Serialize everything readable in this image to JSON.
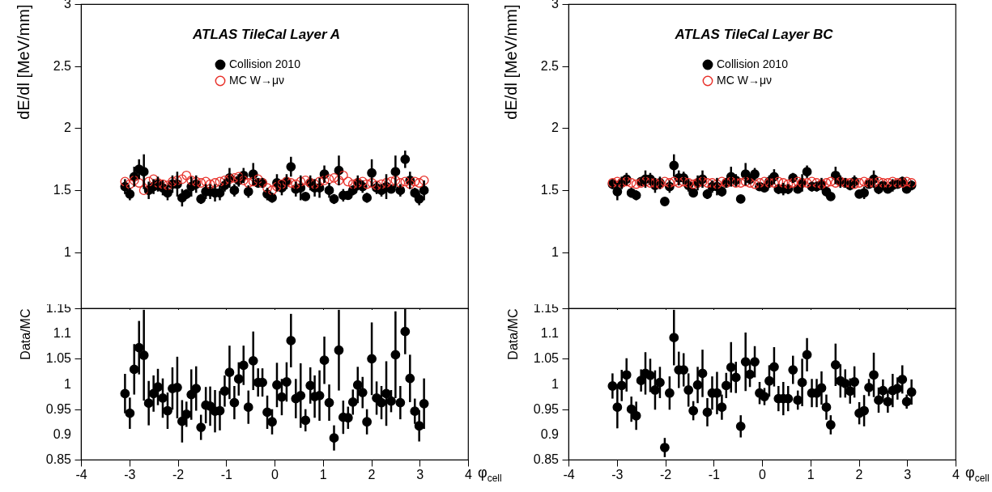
{
  "chart_data": [
    {
      "type": "scatter",
      "title": "ATLAS TileCal Layer A",
      "ylabel": "dE/dl [MeV/mm]",
      "xlim": [
        -4,
        4
      ],
      "xticks": [
        -4,
        -3,
        -2,
        -1,
        0,
        1,
        2,
        3,
        4
      ],
      "ylim": [
        0.55,
        3
      ],
      "yticks": [
        1,
        1.5,
        2,
        2.5,
        3
      ],
      "tick_labels": "y",
      "legend": "top",
      "marker": "circle",
      "x": [
        -3.09,
        -2.99,
        -2.9,
        -2.8,
        -2.7,
        -2.6,
        -2.5,
        -2.41,
        -2.31,
        -2.21,
        -2.11,
        -2.01,
        -1.91,
        -1.82,
        -1.72,
        -1.62,
        -1.52,
        -1.42,
        -1.33,
        -1.23,
        -1.13,
        -1.03,
        -0.93,
        -0.83,
        -0.74,
        -0.64,
        -0.54,
        -0.44,
        -0.34,
        -0.25,
        -0.15,
        -0.05,
        0.05,
        0.15,
        0.25,
        0.34,
        0.44,
        0.54,
        0.64,
        0.74,
        0.83,
        0.93,
        1.03,
        1.13,
        1.23,
        1.33,
        1.42,
        1.52,
        1.62,
        1.72,
        1.82,
        1.91,
        2.01,
        2.11,
        2.21,
        2.31,
        2.41,
        2.5,
        2.6,
        2.7,
        2.8,
        2.9,
        2.99,
        3.09
      ],
      "series": [
        {
          "name": "Collision 2010",
          "color": "#000000",
          "values": [
            1.53,
            1.47,
            1.61,
            1.67,
            1.65,
            1.5,
            1.53,
            1.55,
            1.52,
            1.48,
            1.55,
            1.55,
            1.44,
            1.47,
            1.53,
            1.55,
            1.43,
            1.49,
            1.49,
            1.48,
            1.48,
            1.54,
            1.6,
            1.5,
            1.58,
            1.62,
            1.49,
            1.63,
            1.56,
            1.56,
            1.47,
            1.44,
            1.56,
            1.52,
            1.57,
            1.69,
            1.51,
            1.52,
            1.45,
            1.56,
            1.52,
            1.52,
            1.63,
            1.5,
            1.43,
            1.66,
            1.46,
            1.46,
            1.5,
            1.56,
            1.53,
            1.44,
            1.64,
            1.52,
            1.5,
            1.53,
            1.51,
            1.65,
            1.5,
            1.75,
            1.58,
            1.48,
            1.43,
            1.5
          ],
          "errors": [
            0.06,
            0.05,
            0.08,
            0.08,
            0.14,
            0.07,
            0.06,
            0.06,
            0.06,
            0.06,
            0.07,
            0.1,
            0.07,
            0.04,
            0.08,
            0.07,
            0.04,
            0.06,
            0.06,
            0.07,
            0.06,
            0.05,
            0.08,
            0.05,
            0.05,
            0.06,
            0.05,
            0.09,
            0.04,
            0.04,
            0.05,
            0.04,
            0.07,
            0.06,
            0.06,
            0.08,
            0.06,
            0.1,
            0.03,
            0.06,
            0.07,
            0.08,
            0.07,
            0.06,
            0.04,
            0.12,
            0.05,
            0.03,
            0.04,
            0.06,
            0.05,
            0.04,
            0.11,
            0.05,
            0.05,
            0.1,
            0.03,
            0.13,
            0.05,
            0.07,
            0.07,
            0.04,
            0.05,
            0.08
          ]
        },
        {
          "name": "MC W→μν",
          "color": "#e8312a",
          "values": [
            1.57,
            1.55,
            1.58,
            1.56,
            1.5,
            1.57,
            1.59,
            1.56,
            1.55,
            1.54,
            1.57,
            1.58,
            1.59,
            1.62,
            1.58,
            1.57,
            1.56,
            1.57,
            1.55,
            1.56,
            1.57,
            1.58,
            1.59,
            1.6,
            1.61,
            1.58,
            1.56,
            1.57,
            1.59,
            1.56,
            1.52,
            1.5,
            1.53,
            1.55,
            1.57,
            1.56,
            1.55,
            1.57,
            1.58,
            1.56,
            1.55,
            1.57,
            1.58,
            1.59,
            1.6,
            1.58,
            1.62,
            1.57,
            1.55,
            1.56,
            1.57,
            1.55,
            1.56,
            1.54,
            1.55,
            1.56,
            1.57,
            1.58,
            1.56,
            1.57,
            1.55,
            1.57,
            1.56,
            1.58
          ]
        }
      ]
    },
    {
      "type": "scatter",
      "title": "ATLAS TileCal Layer BC",
      "ylabel": "dE/dl [MeV/mm]",
      "xlim": [
        -4,
        4
      ],
      "xticks": [
        -4,
        -3,
        -2,
        -1,
        0,
        1,
        2,
        3,
        4
      ],
      "ylim": [
        0.55,
        3
      ],
      "yticks": [
        1,
        1.5,
        2,
        2.5,
        3
      ],
      "tick_labels": "y",
      "legend": "top",
      "marker": "circle",
      "x": [
        -3.09,
        -2.99,
        -2.9,
        -2.8,
        -2.7,
        -2.6,
        -2.5,
        -2.41,
        -2.31,
        -2.21,
        -2.11,
        -2.01,
        -1.91,
        -1.82,
        -1.72,
        -1.62,
        -1.52,
        -1.42,
        -1.33,
        -1.23,
        -1.13,
        -1.03,
        -0.93,
        -0.83,
        -0.74,
        -0.64,
        -0.54,
        -0.44,
        -0.34,
        -0.25,
        -0.15,
        -0.05,
        0.05,
        0.15,
        0.25,
        0.34,
        0.44,
        0.54,
        0.64,
        0.74,
        0.83,
        0.93,
        1.03,
        1.13,
        1.23,
        1.33,
        1.42,
        1.52,
        1.62,
        1.72,
        1.82,
        1.91,
        2.01,
        2.11,
        2.21,
        2.31,
        2.41,
        2.5,
        2.6,
        2.7,
        2.8,
        2.9,
        2.99,
        3.09
      ],
      "series": [
        {
          "name": "Collision 2010",
          "color": "#000000",
          "values": [
            1.55,
            1.49,
            1.56,
            1.59,
            1.48,
            1.46,
            1.57,
            1.59,
            1.59,
            1.54,
            1.56,
            1.41,
            1.53,
            1.7,
            1.6,
            1.6,
            1.54,
            1.48,
            1.56,
            1.59,
            1.47,
            1.53,
            1.53,
            1.49,
            1.56,
            1.61,
            1.58,
            1.43,
            1.63,
            1.59,
            1.63,
            1.53,
            1.52,
            1.57,
            1.61,
            1.51,
            1.51,
            1.51,
            1.6,
            1.51,
            1.56,
            1.65,
            1.53,
            1.53,
            1.55,
            1.49,
            1.45,
            1.62,
            1.57,
            1.56,
            1.54,
            1.57,
            1.47,
            1.48,
            1.55,
            1.59,
            1.51,
            1.54,
            1.51,
            1.54,
            1.55,
            1.57,
            1.51,
            1.54
          ],
          "errors": [
            0.04,
            0.07,
            0.05,
            0.05,
            0.04,
            0.04,
            0.03,
            0.07,
            0.05,
            0.06,
            0.05,
            0.03,
            0.05,
            0.09,
            0.06,
            0.05,
            0.05,
            0.03,
            0.06,
            0.07,
            0.04,
            0.05,
            0.07,
            0.04,
            0.04,
            0.08,
            0.05,
            0.03,
            0.09,
            0.04,
            0.05,
            0.03,
            0.03,
            0.05,
            0.06,
            0.04,
            0.05,
            0.04,
            0.04,
            0.03,
            0.07,
            0.05,
            0.04,
            0.04,
            0.05,
            0.04,
            0.03,
            0.07,
            0.05,
            0.04,
            0.04,
            0.05,
            0.03,
            0.05,
            0.03,
            0.07,
            0.04,
            0.03,
            0.03,
            0.05,
            0.03,
            0.04,
            0.02,
            0.04
          ]
        },
        {
          "name": "MC W→μν",
          "color": "#e8312a",
          "values": [
            1.56,
            1.57,
            1.56,
            1.57,
            1.56,
            1.55,
            1.56,
            1.57,
            1.56,
            1.56,
            1.55,
            1.57,
            1.56,
            1.57,
            1.56,
            1.57,
            1.56,
            1.55,
            1.56,
            1.57,
            1.56,
            1.56,
            1.55,
            1.57,
            1.56,
            1.57,
            1.56,
            1.56,
            1.57,
            1.56,
            1.55,
            1.56,
            1.57,
            1.56,
            1.56,
            1.57,
            1.56,
            1.55,
            1.56,
            1.57,
            1.56,
            1.56,
            1.57,
            1.56,
            1.55,
            1.56,
            1.57,
            1.56,
            1.57,
            1.56,
            1.56,
            1.55,
            1.56,
            1.57,
            1.56,
            1.56,
            1.57,
            1.56,
            1.56,
            1.57,
            1.56,
            1.56,
            1.57,
            1.56
          ]
        }
      ]
    },
    {
      "type": "scatter",
      "ylabel": "Data/MC",
      "xlabel": "φ$_{cell}$",
      "xlim": [
        -4,
        4
      ],
      "xticks": [
        -4,
        -3,
        -2,
        -1,
        0,
        1,
        2,
        3,
        4
      ],
      "ylim": [
        0.85,
        1.15
      ],
      "yticks": [
        0.85,
        0.9,
        0.95,
        1,
        1.05,
        1.1,
        1.15
      ],
      "marker": "circle",
      "x": [
        -3.09,
        -2.99,
        -2.9,
        -2.8,
        -2.7,
        -2.6,
        -2.5,
        -2.41,
        -2.31,
        -2.21,
        -2.11,
        -2.01,
        -1.91,
        -1.82,
        -1.72,
        -1.62,
        -1.52,
        -1.42,
        -1.33,
        -1.23,
        -1.13,
        -1.03,
        -0.93,
        -0.83,
        -0.74,
        -0.64,
        -0.54,
        -0.44,
        -0.34,
        -0.25,
        -0.15,
        -0.05,
        0.05,
        0.15,
        0.25,
        0.34,
        0.44,
        0.54,
        0.64,
        0.74,
        0.83,
        0.93,
        1.03,
        1.13,
        1.23,
        1.33,
        1.42,
        1.52,
        1.62,
        1.72,
        1.82,
        1.91,
        2.01,
        2.11,
        2.21,
        2.31,
        2.41,
        2.5,
        2.6,
        2.7,
        2.8,
        2.9,
        2.99,
        3.09
      ],
      "series": [
        {
          "color": "#000000",
          "values": [
            0.981,
            0.942,
            1.029,
            1.072,
            1.057,
            0.962,
            0.981,
            0.994,
            0.972,
            0.947,
            0.991,
            0.993,
            0.926,
            0.94,
            0.979,
            0.991,
            0.914,
            0.958,
            0.956,
            0.946,
            0.947,
            0.986,
            1.023,
            0.963,
            1.01,
            1.037,
            0.954,
            1.046,
            1.003,
            1.003,
            0.944,
            0.925,
            0.998,
            0.974,
            1.004,
            1.086,
            0.971,
            0.977,
            0.928,
            0.997,
            0.975,
            0.977,
            1.047,
            0.963,
            0.893,
            1.067,
            0.934,
            0.933,
            0.964,
            0.998,
            0.983,
            0.925,
            1.05,
            0.972,
            0.963,
            0.981,
            0.966,
            1.058,
            0.963,
            1.104,
            1.011,
            0.946,
            0.917,
            0.961
          ],
          "errors": [
            0.039,
            0.031,
            0.05,
            0.053,
            0.09,
            0.044,
            0.036,
            0.036,
            0.039,
            0.036,
            0.042,
            0.061,
            0.042,
            0.025,
            0.05,
            0.044,
            0.025,
            0.036,
            0.039,
            0.042,
            0.039,
            0.031,
            0.053,
            0.033,
            0.033,
            0.039,
            0.033,
            0.058,
            0.028,
            0.028,
            0.033,
            0.025,
            0.044,
            0.036,
            0.039,
            0.053,
            0.039,
            0.064,
            0.022,
            0.036,
            0.042,
            0.05,
            0.047,
            0.036,
            0.025,
            0.08,
            0.033,
            0.022,
            0.025,
            0.036,
            0.031,
            0.025,
            0.072,
            0.033,
            0.033,
            0.064,
            0.022,
            0.086,
            0.033,
            0.045,
            0.047,
            0.025,
            0.031,
            0.05
          ]
        }
      ]
    },
    {
      "type": "scatter",
      "ylabel": "Data/MC",
      "xlabel": "φ$_{cell}$",
      "xlim": [
        -4,
        4
      ],
      "xticks": [
        -4,
        -3,
        -2,
        -1,
        0,
        1,
        2,
        3,
        4
      ],
      "ylim": [
        0.85,
        1.15
      ],
      "yticks": [
        0.85,
        0.9,
        0.95,
        1,
        1.05,
        1.1,
        1.15
      ],
      "marker": "circle",
      "x": [
        -3.09,
        -2.99,
        -2.9,
        -2.8,
        -2.7,
        -2.6,
        -2.5,
        -2.41,
        -2.31,
        -2.21,
        -2.11,
        -2.01,
        -1.91,
        -1.82,
        -1.72,
        -1.62,
        -1.52,
        -1.42,
        -1.33,
        -1.23,
        -1.13,
        -1.03,
        -0.93,
        -0.83,
        -0.74,
        -0.64,
        -0.54,
        -0.44,
        -0.34,
        -0.25,
        -0.15,
        -0.05,
        0.05,
        0.15,
        0.25,
        0.34,
        0.44,
        0.54,
        0.64,
        0.74,
        0.83,
        0.93,
        1.03,
        1.13,
        1.23,
        1.33,
        1.42,
        1.52,
        1.62,
        1.72,
        1.82,
        1.91,
        2.01,
        2.11,
        2.21,
        2.31,
        2.41,
        2.5,
        2.6,
        2.7,
        2.8,
        2.9,
        2.99,
        3.09
      ],
      "series": [
        {
          "color": "#000000",
          "values": [
            0.996,
            0.954,
            0.997,
            1.018,
            0.95,
            0.937,
            1.007,
            1.021,
            1.017,
            0.988,
            1.003,
            0.874,
            0.982,
            1.092,
            1.028,
            1.028,
            0.988,
            0.947,
            0.998,
            1.021,
            0.944,
            0.982,
            0.982,
            0.954,
            0.997,
            1.033,
            1.013,
            0.916,
            1.044,
            1.019,
            1.044,
            0.982,
            0.975,
            1.006,
            1.034,
            0.971,
            0.971,
            0.971,
            1.028,
            0.968,
            1.003,
            1.058,
            0.982,
            0.982,
            0.992,
            0.954,
            0.919,
            1.038,
            1.006,
            1.001,
            0.986,
            1.004,
            0.942,
            0.947,
            0.993,
            1.018,
            0.968,
            0.987,
            0.965,
            0.987,
            0.991,
            1.009,
            0.965,
            0.984
          ],
          "errors": [
            0.025,
            0.042,
            0.031,
            0.033,
            0.025,
            0.028,
            0.022,
            0.042,
            0.033,
            0.039,
            0.031,
            0.019,
            0.033,
            0.055,
            0.036,
            0.033,
            0.033,
            0.019,
            0.036,
            0.047,
            0.028,
            0.033,
            0.042,
            0.025,
            0.025,
            0.05,
            0.031,
            0.022,
            0.058,
            0.025,
            0.031,
            0.022,
            0.017,
            0.031,
            0.039,
            0.025,
            0.033,
            0.025,
            0.028,
            0.019,
            0.047,
            0.033,
            0.028,
            0.028,
            0.033,
            0.025,
            0.019,
            0.042,
            0.033,
            0.028,
            0.025,
            0.031,
            0.022,
            0.031,
            0.017,
            0.044,
            0.025,
            0.022,
            0.022,
            0.033,
            0.022,
            0.028,
            0.014,
            0.025
          ]
        }
      ]
    }
  ]
}
